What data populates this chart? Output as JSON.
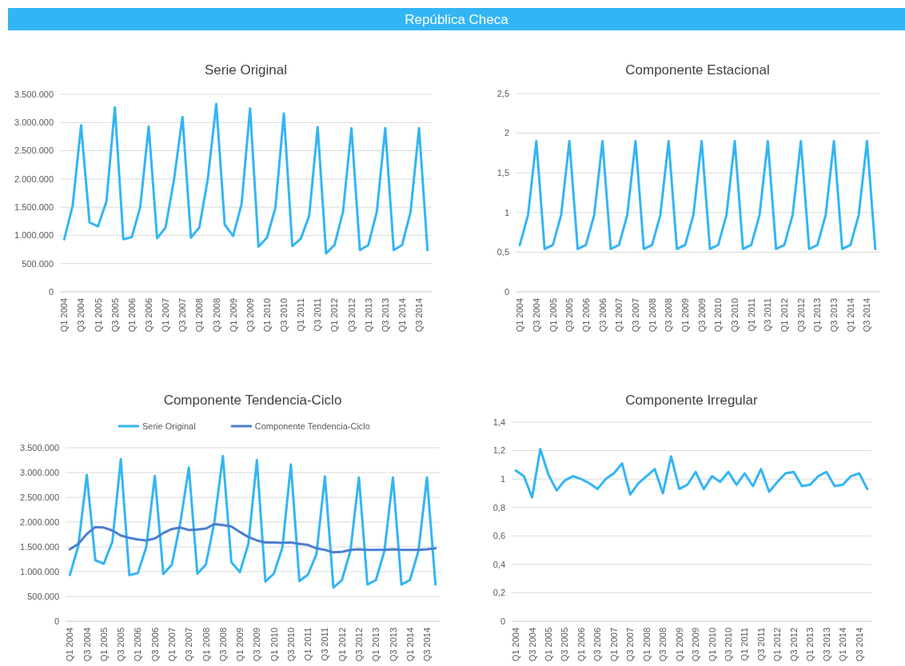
{
  "chart_data": [
    {
      "type": "line",
      "title": "Serie Original",
      "annotations": [
        "República Checa"
      ],
      "categories": [
        "Q1 2004",
        null,
        "Q3 2004",
        null,
        "Q1 2005",
        null,
        "Q3 2005",
        null,
        "Q1 2006",
        null,
        "Q3 2006",
        null,
        "Q1 2007",
        null,
        "Q3 2007",
        null,
        "Q1 2008",
        null,
        "Q3 2008",
        null,
        "Q1 2009",
        null,
        "Q3 2009",
        null,
        "Q1 2010",
        null,
        "Q3 2010",
        null,
        "Q1 2011",
        null,
        "Q3 2011",
        null,
        "Q1 2012",
        null,
        "Q3 2012",
        null,
        "Q1 2013",
        null,
        "Q3 2013",
        null,
        "Q1 2014",
        null,
        "Q3 2014",
        null
      ],
      "color": "#33b5f5",
      "values": [
        930000,
        1520000,
        2950000,
        1230000,
        1160000,
        1600000,
        3270000,
        930000,
        970000,
        1500000,
        2930000,
        950000,
        1140000,
        1990000,
        3100000,
        960000,
        1140000,
        2000000,
        3330000,
        1190000,
        990000,
        1560000,
        3250000,
        800000,
        960000,
        1490000,
        3160000,
        810000,
        940000,
        1350000,
        2920000,
        680000,
        830000,
        1420000,
        2900000,
        740000,
        830000,
        1420000,
        2900000,
        740000,
        830000,
        1420000,
        2900000,
        740000
      ],
      "ylim": [
        0,
        3500000
      ],
      "yticks": [
        0,
        {
          "value": 500000,
          "label": "500.000"
        },
        {
          "value": 1000000,
          "label": "1.000.000"
        },
        {
          "value": 1500000,
          "label": "1.500.000"
        },
        {
          "value": 2000000,
          "label": "2.000.000"
        },
        {
          "value": 2500000,
          "label": "2.500.000"
        },
        {
          "value": 3000000,
          "label": "3.000.000"
        },
        {
          "value": 3500000,
          "label": "3.500.000"
        }
      ],
      "grid": "y"
    },
    {
      "type": "line",
      "title": "Componente Estacional",
      "categories": [
        "Q1 2004",
        null,
        "Q3 2004",
        null,
        "Q1 2005",
        null,
        "Q3 2005",
        null,
        "Q1 2006",
        null,
        "Q3 2006",
        null,
        "Q1 2007",
        null,
        "Q3 2007",
        null,
        "Q1 2008",
        null,
        "Q3 2008",
        null,
        "Q1 2009",
        null,
        "Q3 2009",
        null,
        "Q1 2010",
        null,
        "Q3 2010",
        null,
        "Q1 2011",
        null,
        "Q3 2011",
        null,
        "Q1 2012",
        null,
        "Q3 2012",
        null,
        "Q1 2013",
        null,
        "Q3 2013",
        null,
        "Q1 2014",
        null,
        "Q3 2014",
        null
      ],
      "color": "#33b5f5",
      "values": [
        0.59,
        0.97,
        1.9,
        0.54,
        0.59,
        0.97,
        1.9,
        0.54,
        0.59,
        0.97,
        1.9,
        0.54,
        0.59,
        0.97,
        1.9,
        0.54,
        0.59,
        0.97,
        1.9,
        0.54,
        0.59,
        0.97,
        1.9,
        0.54,
        0.59,
        0.97,
        1.9,
        0.54,
        0.59,
        0.97,
        1.9,
        0.54,
        0.59,
        0.97,
        1.9,
        0.54,
        0.59,
        0.97,
        1.9,
        0.54,
        0.59,
        0.97,
        1.9,
        0.54
      ],
      "ylim": [
        0,
        2.5
      ],
      "yticks": [
        0,
        {
          "value": 0.5,
          "label": "0,5"
        },
        1,
        {
          "value": 1.5,
          "label": "1,5"
        },
        2,
        {
          "value": 2.5,
          "label": "2,5"
        }
      ],
      "grid": "y"
    },
    {
      "type": "line",
      "title": "Componente Tendencia-Ciclo",
      "categories": [
        "Q1 2004",
        null,
        "Q3 2004",
        null,
        "Q1 2005",
        null,
        "Q3 2005",
        null,
        "Q1 2006",
        null,
        "Q3 2006",
        null,
        "Q1 2007",
        null,
        "Q3 2007",
        null,
        "Q1 2008",
        null,
        "Q3 2008",
        null,
        "Q1 2009",
        null,
        "Q3 2009",
        null,
        "Q1 2010",
        null,
        "Q3 2010",
        null,
        "Q1 2011",
        null,
        "Q3 2011",
        null,
        "Q1 2012",
        null,
        "Q3 2012",
        null,
        "Q1 2013",
        null,
        "Q3 2013",
        null,
        "Q1 2014",
        null,
        "Q3 2014",
        null
      ],
      "series": [
        {
          "name": "Serie Original",
          "color": "#33b5f5",
          "values": [
            930000,
            1520000,
            2950000,
            1230000,
            1160000,
            1600000,
            3270000,
            930000,
            970000,
            1500000,
            2930000,
            950000,
            1140000,
            1990000,
            3100000,
            960000,
            1140000,
            2000000,
            3330000,
            1190000,
            990000,
            1560000,
            3250000,
            800000,
            960000,
            1490000,
            3160000,
            810000,
            940000,
            1350000,
            2920000,
            680000,
            830000,
            1420000,
            2900000,
            740000,
            830000,
            1420000,
            2900000,
            740000,
            830000,
            1420000,
            2900000,
            740000
          ]
        },
        {
          "name": "Componente Tendencia-Ciclo",
          "color": "#4a7fd0",
          "values": [
            1450000,
            1560000,
            1760000,
            1900000,
            1890000,
            1830000,
            1730000,
            1680000,
            1650000,
            1630000,
            1670000,
            1780000,
            1860000,
            1890000,
            1840000,
            1850000,
            1870000,
            1960000,
            1940000,
            1910000,
            1800000,
            1700000,
            1630000,
            1590000,
            1590000,
            1580000,
            1590000,
            1560000,
            1540000,
            1470000,
            1440000,
            1390000,
            1400000,
            1440000,
            1450000,
            1440000,
            1440000,
            1440000,
            1450000,
            1440000,
            1440000,
            1440000,
            1450000,
            1470000
          ]
        }
      ],
      "ylim": [
        0,
        3500000
      ],
      "yticks": [
        0,
        {
          "value": 500000,
          "label": "500.000"
        },
        {
          "value": 1000000,
          "label": "1.000.000"
        },
        {
          "value": 1500000,
          "label": "1.500.000"
        },
        {
          "value": 2000000,
          "label": "2.000.000"
        },
        {
          "value": 2500000,
          "label": "2.500.000"
        },
        {
          "value": 3000000,
          "label": "3.000.000"
        },
        {
          "value": 3500000,
          "label": "3.500.000"
        }
      ],
      "grid": "y",
      "legend": "top"
    },
    {
      "type": "line",
      "title": "Componente Irregular",
      "categories": [
        "Q1 2004",
        null,
        "Q3 2004",
        null,
        "Q1 2005",
        null,
        "Q3 2005",
        null,
        "Q1 2006",
        null,
        "Q3 2006",
        null,
        "Q1 2007",
        null,
        "Q3 2007",
        null,
        "Q1 2008",
        null,
        "Q3 2008",
        null,
        "Q1 2009",
        null,
        "Q3 2009",
        null,
        "Q1 2010",
        null,
        "Q3 2010",
        null,
        "Q1 2011",
        null,
        "Q3 2011",
        null,
        "Q1 2012",
        null,
        "Q3 2012",
        null,
        "Q1 2013",
        null,
        "Q3 2013",
        null,
        "Q1 2014",
        null,
        "Q3 2014",
        null
      ],
      "color": "#33b5f5",
      "values": [
        1.06,
        1.02,
        0.87,
        1.21,
        1.03,
        0.92,
        0.99,
        1.02,
        1.0,
        0.97,
        0.93,
        1.0,
        1.04,
        1.11,
        0.89,
        0.97,
        1.02,
        1.07,
        0.9,
        1.16,
        0.93,
        0.96,
        1.05,
        0.93,
        1.02,
        0.98,
        1.05,
        0.96,
        1.04,
        0.95,
        1.07,
        0.91,
        0.98,
        1.04,
        1.05,
        0.95,
        0.96,
        1.02,
        1.05,
        0.95,
        0.96,
        1.02,
        1.04,
        0.93
      ],
      "ylim": [
        0,
        1.4
      ],
      "yticks": [
        0,
        {
          "value": 0.2,
          "label": "0,2"
        },
        {
          "value": 0.4,
          "label": "0,4"
        },
        {
          "value": 0.6,
          "label": "0,6"
        },
        {
          "value": 0.8,
          "label": "0,8"
        },
        1,
        {
          "value": 1.2,
          "label": "1,2"
        },
        {
          "value": 1.4,
          "label": "1,4"
        }
      ],
      "grid": "y"
    }
  ]
}
